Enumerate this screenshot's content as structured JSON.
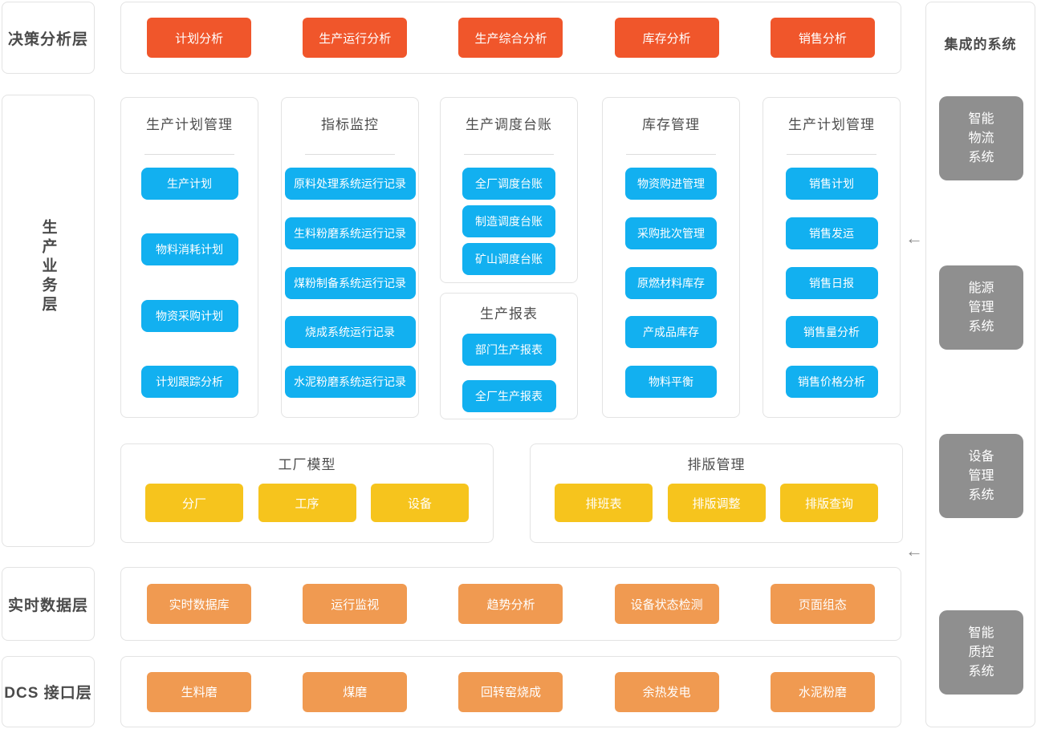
{
  "colors": {
    "decision_button": "#f0562b",
    "module_button": "#12b0f0",
    "model_button": "#f6c41d",
    "interface_button": "#f09a51",
    "system_box": "#8f8f8f"
  },
  "left_layers": {
    "decision": "决策分析层",
    "business": "生产业务层",
    "realtime": "实时数据层",
    "dcs": "DCS 接口层"
  },
  "decision_row": {
    "buttons": [
      "计划分析",
      "生产运行分析",
      "生产综合分析",
      "库存分析",
      "销售分析"
    ]
  },
  "panels": {
    "production_plan": {
      "title": "生产计划管理",
      "buttons": [
        "生产计划",
        "物料消耗计划",
        "物资采购计划",
        "计划跟踪分析"
      ]
    },
    "kpi_monitor": {
      "title": "指标监控",
      "buttons": [
        "原料处理系统运行记录",
        "生料粉磨系统运行记录",
        "煤粉制备系统运行记录",
        "烧成系统运行记录",
        "水泥粉磨系统运行记录"
      ]
    },
    "dispatch_ledger": {
      "title": "生产调度台账",
      "buttons": [
        "全厂调度台账",
        "制造调度台账",
        "矿山调度台账"
      ]
    },
    "production_report": {
      "title": "生产报表",
      "buttons": [
        "部门生产报表",
        "全厂生产报表"
      ]
    },
    "inventory": {
      "title": "库存管理",
      "buttons": [
        "物资购进管理",
        "采购批次管理",
        "原燃材料库存",
        "产成品库存",
        "物料平衡"
      ]
    },
    "sales": {
      "title": "生产计划管理",
      "buttons": [
        "销售计划",
        "销售发运",
        "销售日报",
        "销售量分析",
        "销售价格分析"
      ]
    },
    "factory_model": {
      "title": "工厂模型",
      "buttons": [
        "分厂",
        "工序",
        "设备"
      ]
    },
    "layout_mgmt": {
      "title": "排版管理",
      "buttons": [
        "排班表",
        "排版调整",
        "排版查询"
      ]
    }
  },
  "realtime_row": {
    "buttons": [
      "实时数据库",
      "运行监视",
      "趋势分析",
      "设备状态检测",
      "页面组态"
    ]
  },
  "dcs_row": {
    "buttons": [
      "生料磨",
      "煤磨",
      "回转窑烧成",
      "余热发电",
      "水泥粉磨"
    ]
  },
  "integrated": {
    "title": "集成的系统",
    "systems": [
      "智能物流系统",
      "能源管理系统",
      "设备管理系统",
      "智能质控系统"
    ]
  },
  "icons": {
    "arrow_left": "←"
  }
}
